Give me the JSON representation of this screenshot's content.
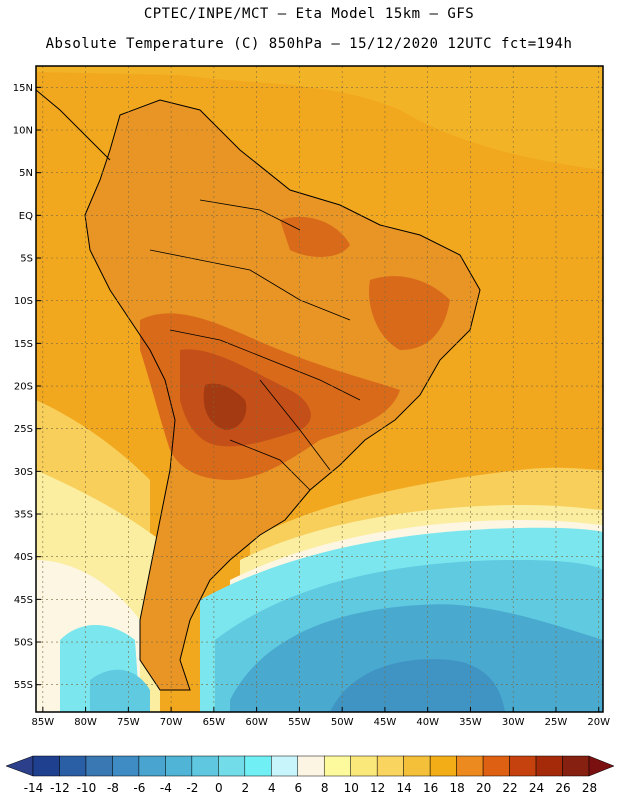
{
  "header": {
    "line1": "CPTEC/INPE/MCT –  Eta Model 15km – GFS",
    "line2": "Absolute Temperature (C) 850hPa – 15/12/2020 12UTC fct=194h"
  },
  "axes": {
    "lat_labels": [
      "15N",
      "10N",
      "5N",
      "EQ",
      "5S",
      "10S",
      "15S",
      "20S",
      "25S",
      "30S",
      "35S",
      "40S",
      "45S",
      "50S",
      "55S"
    ],
    "lat_values": [
      15,
      10,
      5,
      0,
      -5,
      -10,
      -15,
      -20,
      -25,
      -30,
      -35,
      -40,
      -45,
      -50,
      -55
    ],
    "lon_labels": [
      "85W",
      "80W",
      "75W",
      "70W",
      "65W",
      "60W",
      "55W",
      "50W",
      "45W",
      "40W",
      "35W",
      "30W",
      "25W",
      "20W"
    ],
    "lon_values": [
      -85,
      -80,
      -75,
      -70,
      -65,
      -60,
      -55,
      -50,
      -45,
      -40,
      -35,
      -30,
      -25,
      -20
    ]
  },
  "colorbar": {
    "labels": [
      "-14",
      "-12",
      "-10",
      "-8",
      "-6",
      "-4",
      "-2",
      "0",
      "2",
      "4",
      "6",
      "8",
      "10",
      "12",
      "14",
      "16",
      "18",
      "20",
      "22",
      "24",
      "26",
      "28"
    ],
    "colors": [
      "#1f3f8f",
      "#2a5ea5",
      "#3a78b4",
      "#3f8cc4",
      "#49a4cf",
      "#4fb4d6",
      "#5fc8e0",
      "#72dce8",
      "#70f0f4",
      "#c8f4fb",
      "#fdf5e4",
      "#fdfa9d",
      "#fbe87a",
      "#f9d45e",
      "#f4c03a",
      "#f3ad17",
      "#ec8a1f",
      "#de6012",
      "#c5410e",
      "#a52a0a",
      "#862010"
    ],
    "under_color": "#2b3f8a",
    "over_color": "#7a1010"
  },
  "palette": {
    "ocean_warm": "#f2a81e",
    "ocean_north": "#f3b326",
    "land_base": "#e99525",
    "land_hot": "#d96a1a",
    "land_hotter": "#c44f18",
    "land_hottest": "#a33a12",
    "ocean_mid": "#f7cf5a",
    "ocean_pale": "#fbeea0",
    "ocean_white": "#fdf6e2",
    "ocean_cyan": "#7be6ee",
    "ocean_cool": "#5fcae0",
    "ocean_cold": "#49a9cf",
    "ocean_colder": "#3f94c4"
  }
}
